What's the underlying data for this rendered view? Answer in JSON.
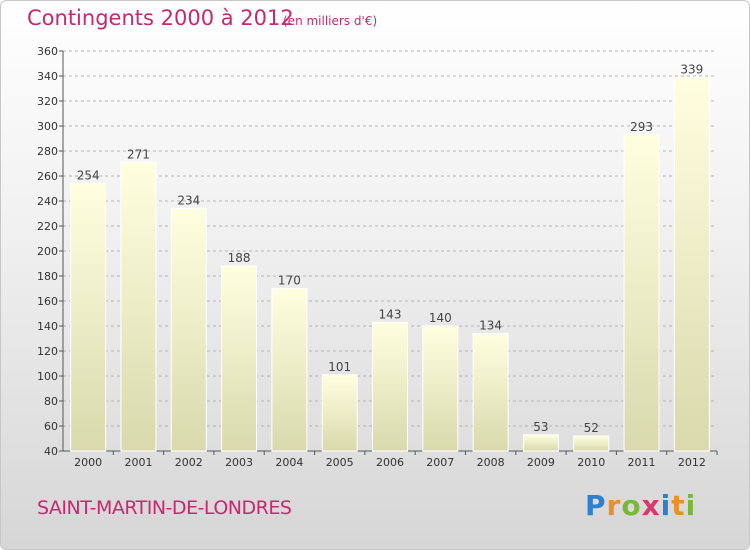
{
  "title": "Contingents 2000 à 2012",
  "unit_note": "(en milliers d'€)",
  "commune": "SAINT-MARTIN-DE-LONDRES",
  "logo": {
    "text": "Proxiti",
    "letters": [
      {
        "char": "P",
        "color": "#2f7fd0"
      },
      {
        "char": "r",
        "color": "#e8902a"
      },
      {
        "char": "o",
        "color": "#7ab83a"
      },
      {
        "char": "x",
        "color": "#d43a6e"
      },
      {
        "char": "i",
        "color": "#2f7fd0"
      },
      {
        "char": "t",
        "color": "#e8902a"
      },
      {
        "char": "i",
        "color": "#7ab83a"
      }
    ]
  },
  "chart_data": {
    "type": "bar",
    "categories": [
      "2000",
      "2001",
      "2002",
      "2003",
      "2004",
      "2005",
      "2006",
      "2007",
      "2008",
      "2009",
      "2010",
      "2011",
      "2012"
    ],
    "values": [
      254,
      271,
      234,
      188,
      170,
      101,
      143,
      140,
      134,
      53,
      52,
      293,
      339
    ],
    "title": "Contingents 2000 à 2012",
    "ylim": [
      40,
      360
    ],
    "yticks": [
      40,
      60,
      80,
      100,
      120,
      140,
      160,
      180,
      200,
      220,
      240,
      260,
      280,
      300,
      320,
      340,
      360
    ],
    "grid": "horizontal dashed",
    "colors": {
      "title": "#c8286e",
      "bar_top": "#ffffe0",
      "bar_bottom": "#d9d9ad",
      "bar_edge": "#ffffff",
      "grid": "#b5b5b5",
      "axis": "#555555"
    }
  }
}
